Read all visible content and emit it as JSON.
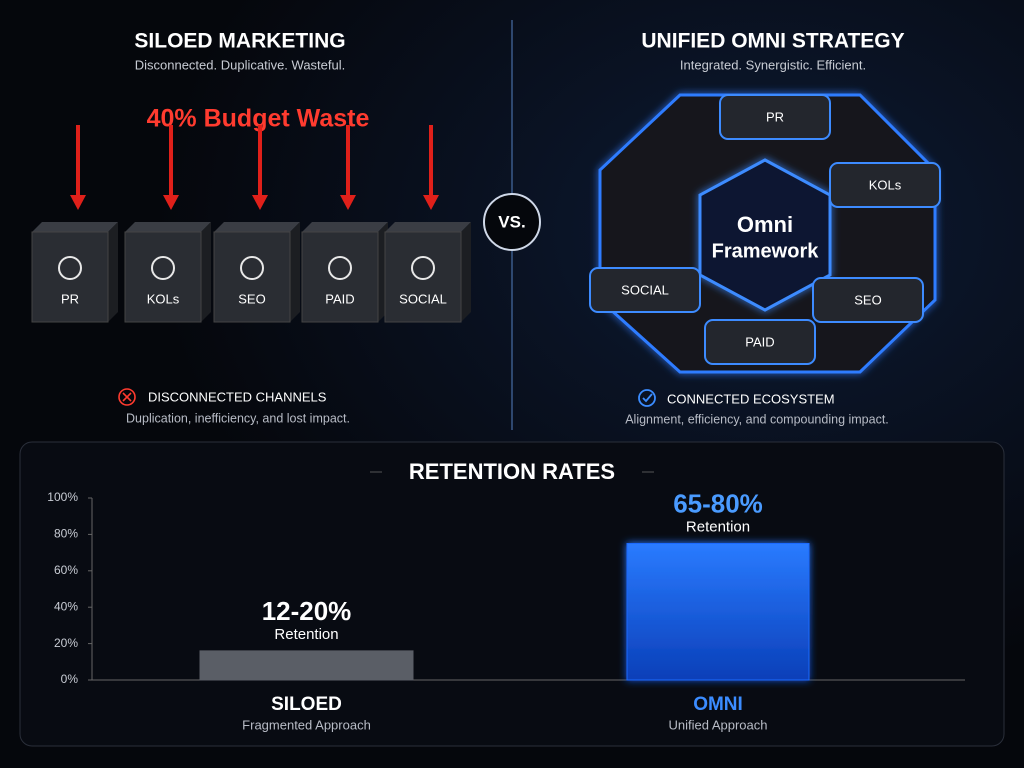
{
  "left": {
    "title": "SILOED MARKETING",
    "subtitle": "Disconnected. Duplicative. Wasteful.",
    "callout": "40% Budget Waste",
    "channels": [
      "PR",
      "KOLs",
      "SEO",
      "PAID",
      "SOCIAL"
    ],
    "status": "DISCONNECTED CHANNELS",
    "caption": "Duplication, inefficiency, and lost impact."
  },
  "divider": "VS.",
  "right": {
    "title": "UNIFIED OMNI STRATEGY",
    "subtitle": "Integrated. Synergistic. Efficient.",
    "center": [
      "Omni",
      "Framework"
    ],
    "channels": [
      "PR",
      "KOLs",
      "SEO",
      "PAID",
      "SOCIAL"
    ],
    "status": "CONNECTED ECOSYSTEM",
    "caption": "Alignment, efficiency, and compounding impact."
  },
  "chart_data": {
    "type": "bar",
    "title": "RETENTION RATES",
    "categories": [
      "SILOED",
      "OMNI"
    ],
    "category_subtitles": [
      "Fragmented Approach",
      "Unified Approach"
    ],
    "values": [
      16,
      75
    ],
    "annotations": [
      {
        "text": "12-20%",
        "sub": "Retention"
      },
      {
        "text": "65-80%",
        "sub": "Retention"
      }
    ],
    "colors": [
      "#5a5e66",
      "#1e6bff"
    ],
    "ylim": [
      0,
      100
    ],
    "yticks": [
      {
        "value": 0,
        "label": "0%"
      },
      {
        "value": 20,
        "label": "20%"
      },
      {
        "value": 40,
        "label": "40%"
      },
      {
        "value": 60,
        "label": "60%"
      },
      {
        "value": 80,
        "label": "80%"
      },
      {
        "value": 100,
        "label": "100%"
      }
    ],
    "grid": false
  }
}
